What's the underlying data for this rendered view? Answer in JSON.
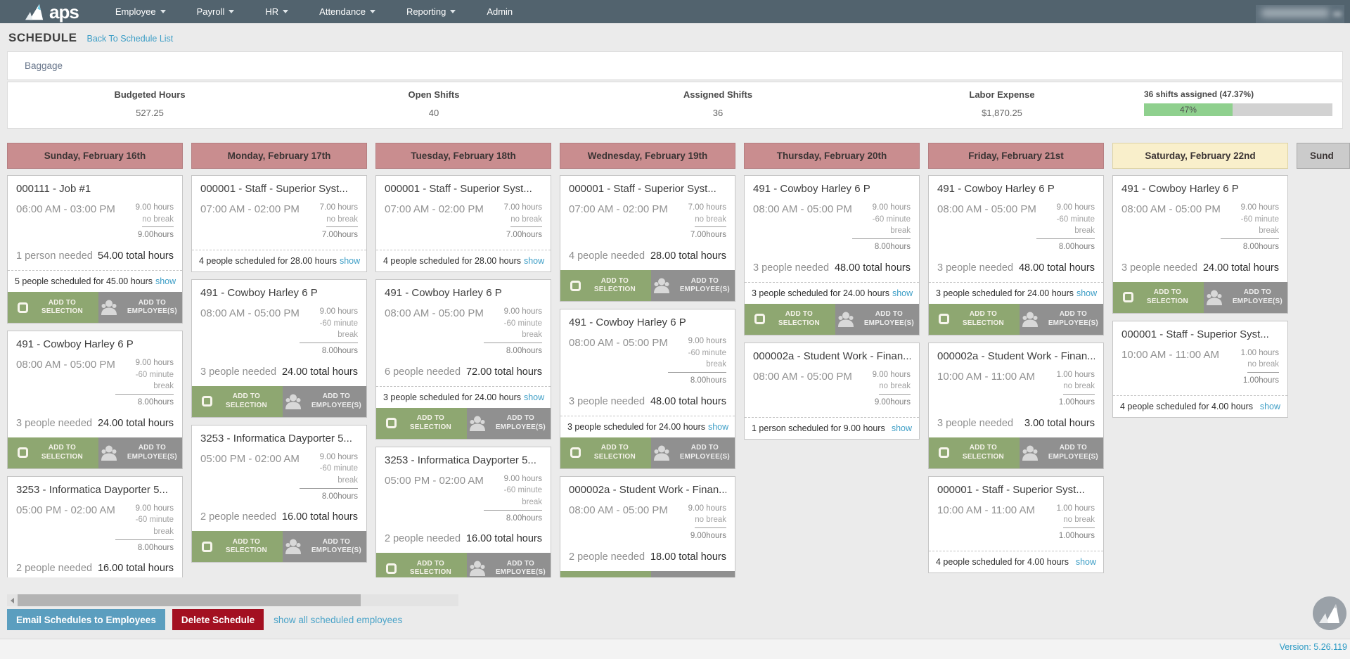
{
  "nav": {
    "logo": "aps",
    "items": [
      {
        "label": "Employee",
        "caret": true
      },
      {
        "label": "Payroll",
        "caret": true
      },
      {
        "label": "HR",
        "caret": true
      },
      {
        "label": "Attendance",
        "caret": true
      },
      {
        "label": "Reporting",
        "caret": true
      },
      {
        "label": "Admin",
        "caret": false
      }
    ]
  },
  "header": {
    "title": "SCHEDULE",
    "back_link": "Back To Schedule List"
  },
  "schedule": {
    "name": "Baggage"
  },
  "stats": [
    {
      "label": "Budgeted Hours",
      "value": "527.25"
    },
    {
      "label": "Open Shifts",
      "value": "40"
    },
    {
      "label": "Assigned Shifts",
      "value": "36"
    },
    {
      "label": "Labor Expense",
      "value": "$1,870.25"
    }
  ],
  "assignment_progress": {
    "label": "36 shifts assigned (47.37%)",
    "percent": 47,
    "percent_label": "47%"
  },
  "shift_card_labels": {
    "add_to_selection": "ADD TO SELECTION",
    "add_to_employees": "ADD TO EMPLOYEE(S)",
    "show_link": "show"
  },
  "days": [
    {
      "name": "Sunday, February 16th",
      "header_style": "rose",
      "shifts": [
        {
          "title": "000111 - Job #1",
          "time": "06:00 AM - 03:00 PM",
          "gross": "9.00 hours",
          "break": "no break",
          "net": "9.00hours",
          "needed": "1 person needed",
          "total": "54.00 total hours",
          "scheduled": "5 people scheduled for 45.00 hours",
          "footer": true
        },
        {
          "title": "491 - Cowboy Harley 6 P",
          "time": "08:00 AM - 05:00 PM",
          "gross": "9.00 hours",
          "break": "-60 minute break",
          "net": "8.00hours",
          "needed": "3 people needed",
          "total": "24.00 total hours",
          "footer": true
        },
        {
          "title": "3253 - Informatica Dayporter 5...",
          "time": "05:00 PM - 02:00 AM",
          "gross": "9.00 hours",
          "break": "-60 minute break",
          "net": "8.00hours",
          "needed": "2 people needed",
          "total": "16.00 total hours",
          "footer": true
        }
      ]
    },
    {
      "name": "Monday, February 17th",
      "header_style": "rose",
      "shifts": [
        {
          "title": "000001 - Staff - Superior Syst...",
          "time": "07:00 AM - 02:00 PM",
          "gross": "7.00 hours",
          "break": "no break",
          "net": "7.00hours",
          "scheduled": "4 people scheduled for 28.00 hours",
          "footer": false
        },
        {
          "title": "491 - Cowboy Harley 6 P",
          "time": "08:00 AM - 05:00 PM",
          "gross": "9.00 hours",
          "break": "-60 minute break",
          "net": "8.00hours",
          "needed": "3 people needed",
          "total": "24.00 total hours",
          "footer": true
        },
        {
          "title": "3253 - Informatica Dayporter 5...",
          "time": "05:00 PM - 02:00 AM",
          "gross": "9.00 hours",
          "break": "-60 minute break",
          "net": "8.00hours",
          "needed": "2 people needed",
          "total": "16.00 total hours",
          "footer": true
        }
      ]
    },
    {
      "name": "Tuesday, February 18th",
      "header_style": "rose",
      "shifts": [
        {
          "title": "000001 - Staff - Superior Syst...",
          "time": "07:00 AM - 02:00 PM",
          "gross": "7.00 hours",
          "break": "no break",
          "net": "7.00hours",
          "scheduled": "4 people scheduled for 28.00 hours",
          "footer": false
        },
        {
          "title": "491 - Cowboy Harley 6 P",
          "time": "08:00 AM - 05:00 PM",
          "gross": "9.00 hours",
          "break": "-60 minute break",
          "net": "8.00hours",
          "needed": "6 people needed",
          "total": "72.00 total hours",
          "scheduled": "3 people scheduled for 24.00 hours",
          "footer": true
        },
        {
          "title": "3253 - Informatica Dayporter 5...",
          "time": "05:00 PM - 02:00 AM",
          "gross": "9.00 hours",
          "break": "-60 minute break",
          "net": "8.00hours",
          "needed": "2 people needed",
          "total": "16.00 total hours",
          "footer": true
        }
      ]
    },
    {
      "name": "Wednesday, February 19th",
      "header_style": "rose",
      "shifts": [
        {
          "title": "000001 - Staff - Superior Syst...",
          "time": "07:00 AM - 02:00 PM",
          "gross": "7.00 hours",
          "break": "no break",
          "net": "7.00hours",
          "needed": "4 people needed",
          "total": "28.00 total hours",
          "footer": true
        },
        {
          "title": "491 - Cowboy Harley 6 P",
          "time": "08:00 AM - 05:00 PM",
          "gross": "9.00 hours",
          "break": "-60 minute break",
          "net": "8.00hours",
          "needed": "3 people needed",
          "total": "48.00 total hours",
          "scheduled": "3 people scheduled for 24.00 hours",
          "footer": true
        },
        {
          "title": "000002a - Student Work - Finan...",
          "time": "08:00 AM - 05:00 PM",
          "gross": "9.00 hours",
          "break": "no break",
          "net": "9.00hours",
          "needed": "2 people needed",
          "total": "18.00 total hours",
          "footer": true
        }
      ]
    },
    {
      "name": "Thursday, February 20th",
      "header_style": "rose",
      "shifts": [
        {
          "title": "491 - Cowboy Harley 6 P",
          "time": "08:00 AM - 05:00 PM",
          "gross": "9.00 hours",
          "break": "-60 minute break",
          "net": "8.00hours",
          "needed": "3 people needed",
          "total": "48.00 total hours",
          "scheduled": "3 people scheduled for 24.00 hours",
          "footer": true
        },
        {
          "title": "000002a - Student Work - Finan...",
          "time": "08:00 AM - 05:00 PM",
          "gross": "9.00 hours",
          "break": "no break",
          "net": "9.00hours",
          "scheduled": "1 person scheduled for 9.00 hours",
          "footer": false
        }
      ]
    },
    {
      "name": "Friday, February 21st",
      "header_style": "rose",
      "shifts": [
        {
          "title": "491 - Cowboy Harley 6 P",
          "time": "08:00 AM - 05:00 PM",
          "gross": "9.00 hours",
          "break": "-60 minute break",
          "net": "8.00hours",
          "needed": "3 people needed",
          "total": "48.00 total hours",
          "scheduled": "3 people scheduled for 24.00 hours",
          "footer": true
        },
        {
          "title": "000002a - Student Work - Finan...",
          "time": "10:00 AM - 11:00 AM",
          "gross": "1.00 hours",
          "break": "no break",
          "net": "1.00hours",
          "needed": "3 people needed",
          "total": "3.00 total hours",
          "footer": true
        },
        {
          "title": "000001 - Staff - Superior Syst...",
          "time": "10:00 AM - 11:00 AM",
          "gross": "1.00 hours",
          "break": "no break",
          "net": "1.00hours",
          "scheduled": "4 people scheduled for 4.00 hours",
          "footer": false
        }
      ]
    },
    {
      "name": "Saturday, February 22nd",
      "header_style": "yellow",
      "shifts": [
        {
          "title": "491 - Cowboy Harley 6 P",
          "time": "08:00 AM - 05:00 PM",
          "gross": "9.00 hours",
          "break": "-60 minute break",
          "net": "8.00hours",
          "needed": "3 people needed",
          "total": "24.00 total hours",
          "footer": true
        },
        {
          "title": "000001 - Staff - Superior Syst...",
          "time": "10:00 AM - 11:00 AM",
          "gross": "1.00 hours",
          "break": "no break",
          "net": "1.00hours",
          "scheduled": "4 people scheduled for 4.00 hours",
          "footer": false
        }
      ]
    }
  ],
  "next_day_partial": "Sund",
  "bottom_bar": {
    "email_button": "Email Schedules to Employees",
    "delete_button": "Delete Schedule",
    "show_all_link": "show all scheduled employees"
  },
  "version": "Version: 5.26.119",
  "colors": {
    "nav_bg": "#52636e",
    "day_header_rose": "#c98d8f",
    "day_header_yellow": "#f9efcb",
    "day_header_gray": "#cbcbcb",
    "selection_button_green": "#8ea771",
    "employees_button_gray": "#909090",
    "progress_green": "#8fd08e",
    "link_blue": "#3d9ec6",
    "email_button_blue": "#5b9ebf",
    "delete_button_red": "#a31021"
  }
}
